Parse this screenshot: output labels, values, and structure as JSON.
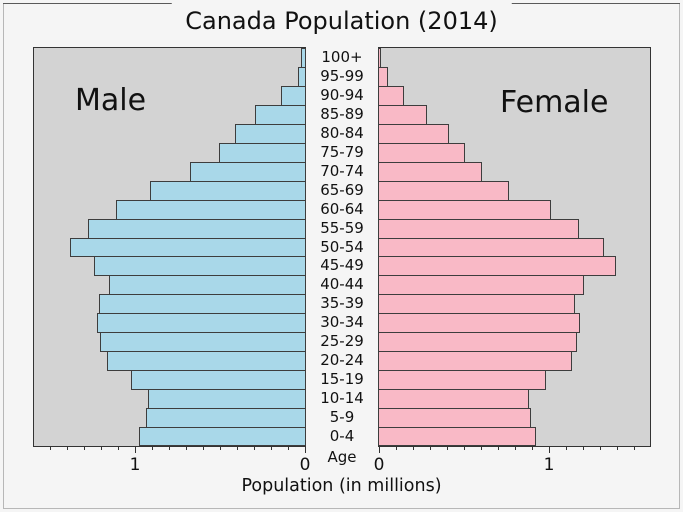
{
  "title": "Canada Population (2014)",
  "male_label": "Male",
  "female_label": "Female",
  "age_axis_label": "Age",
  "xlabel": "Population (in millions)",
  "colors": {
    "male_bar": "#a9d8e9",
    "female_bar": "#f9b9c6",
    "plot_background": "#d3d3d3",
    "figure_background": "#f5f5f5",
    "bar_border": "#3d3d3d",
    "axis": "#333333"
  },
  "axis": {
    "side_max": 1.6,
    "minor_tick_step": 0.1,
    "major_ticks": [
      {
        "side": "male",
        "value": 1,
        "label": "1"
      },
      {
        "side": "male",
        "value": 0,
        "label": "0"
      },
      {
        "side": "female",
        "value": 0,
        "label": "0"
      },
      {
        "side": "female",
        "value": 1,
        "label": "1"
      }
    ]
  },
  "chart_data": {
    "type": "bar",
    "subtype": "population-pyramid",
    "title": "Canada Population (2014)",
    "xlabel": "Population (in millions)",
    "units": "millions of people",
    "age_groups": [
      "100+",
      "95-99",
      "90-94",
      "85-89",
      "80-84",
      "75-79",
      "70-74",
      "65-69",
      "60-64",
      "55-59",
      "50-54",
      "45-49",
      "40-44",
      "35-39",
      "30-34",
      "25-29",
      "20-24",
      "15-19",
      "10-14",
      "5-9",
      "0-4"
    ],
    "series": [
      {
        "name": "Male",
        "values": [
          0.03,
          0.05,
          0.15,
          0.3,
          0.42,
          0.51,
          0.68,
          0.92,
          1.12,
          1.28,
          1.39,
          1.25,
          1.16,
          1.22,
          1.23,
          1.21,
          1.17,
          1.03,
          0.93,
          0.94,
          0.98
        ]
      },
      {
        "name": "Female",
        "values": [
          0.02,
          0.06,
          0.15,
          0.29,
          0.42,
          0.51,
          0.61,
          0.77,
          1.02,
          1.18,
          1.33,
          1.4,
          1.21,
          1.16,
          1.19,
          1.17,
          1.14,
          0.99,
          0.89,
          0.9,
          0.93
        ]
      }
    ],
    "xlim_each_side": [
      0,
      1.6
    ],
    "legend": "none",
    "grid": false
  }
}
